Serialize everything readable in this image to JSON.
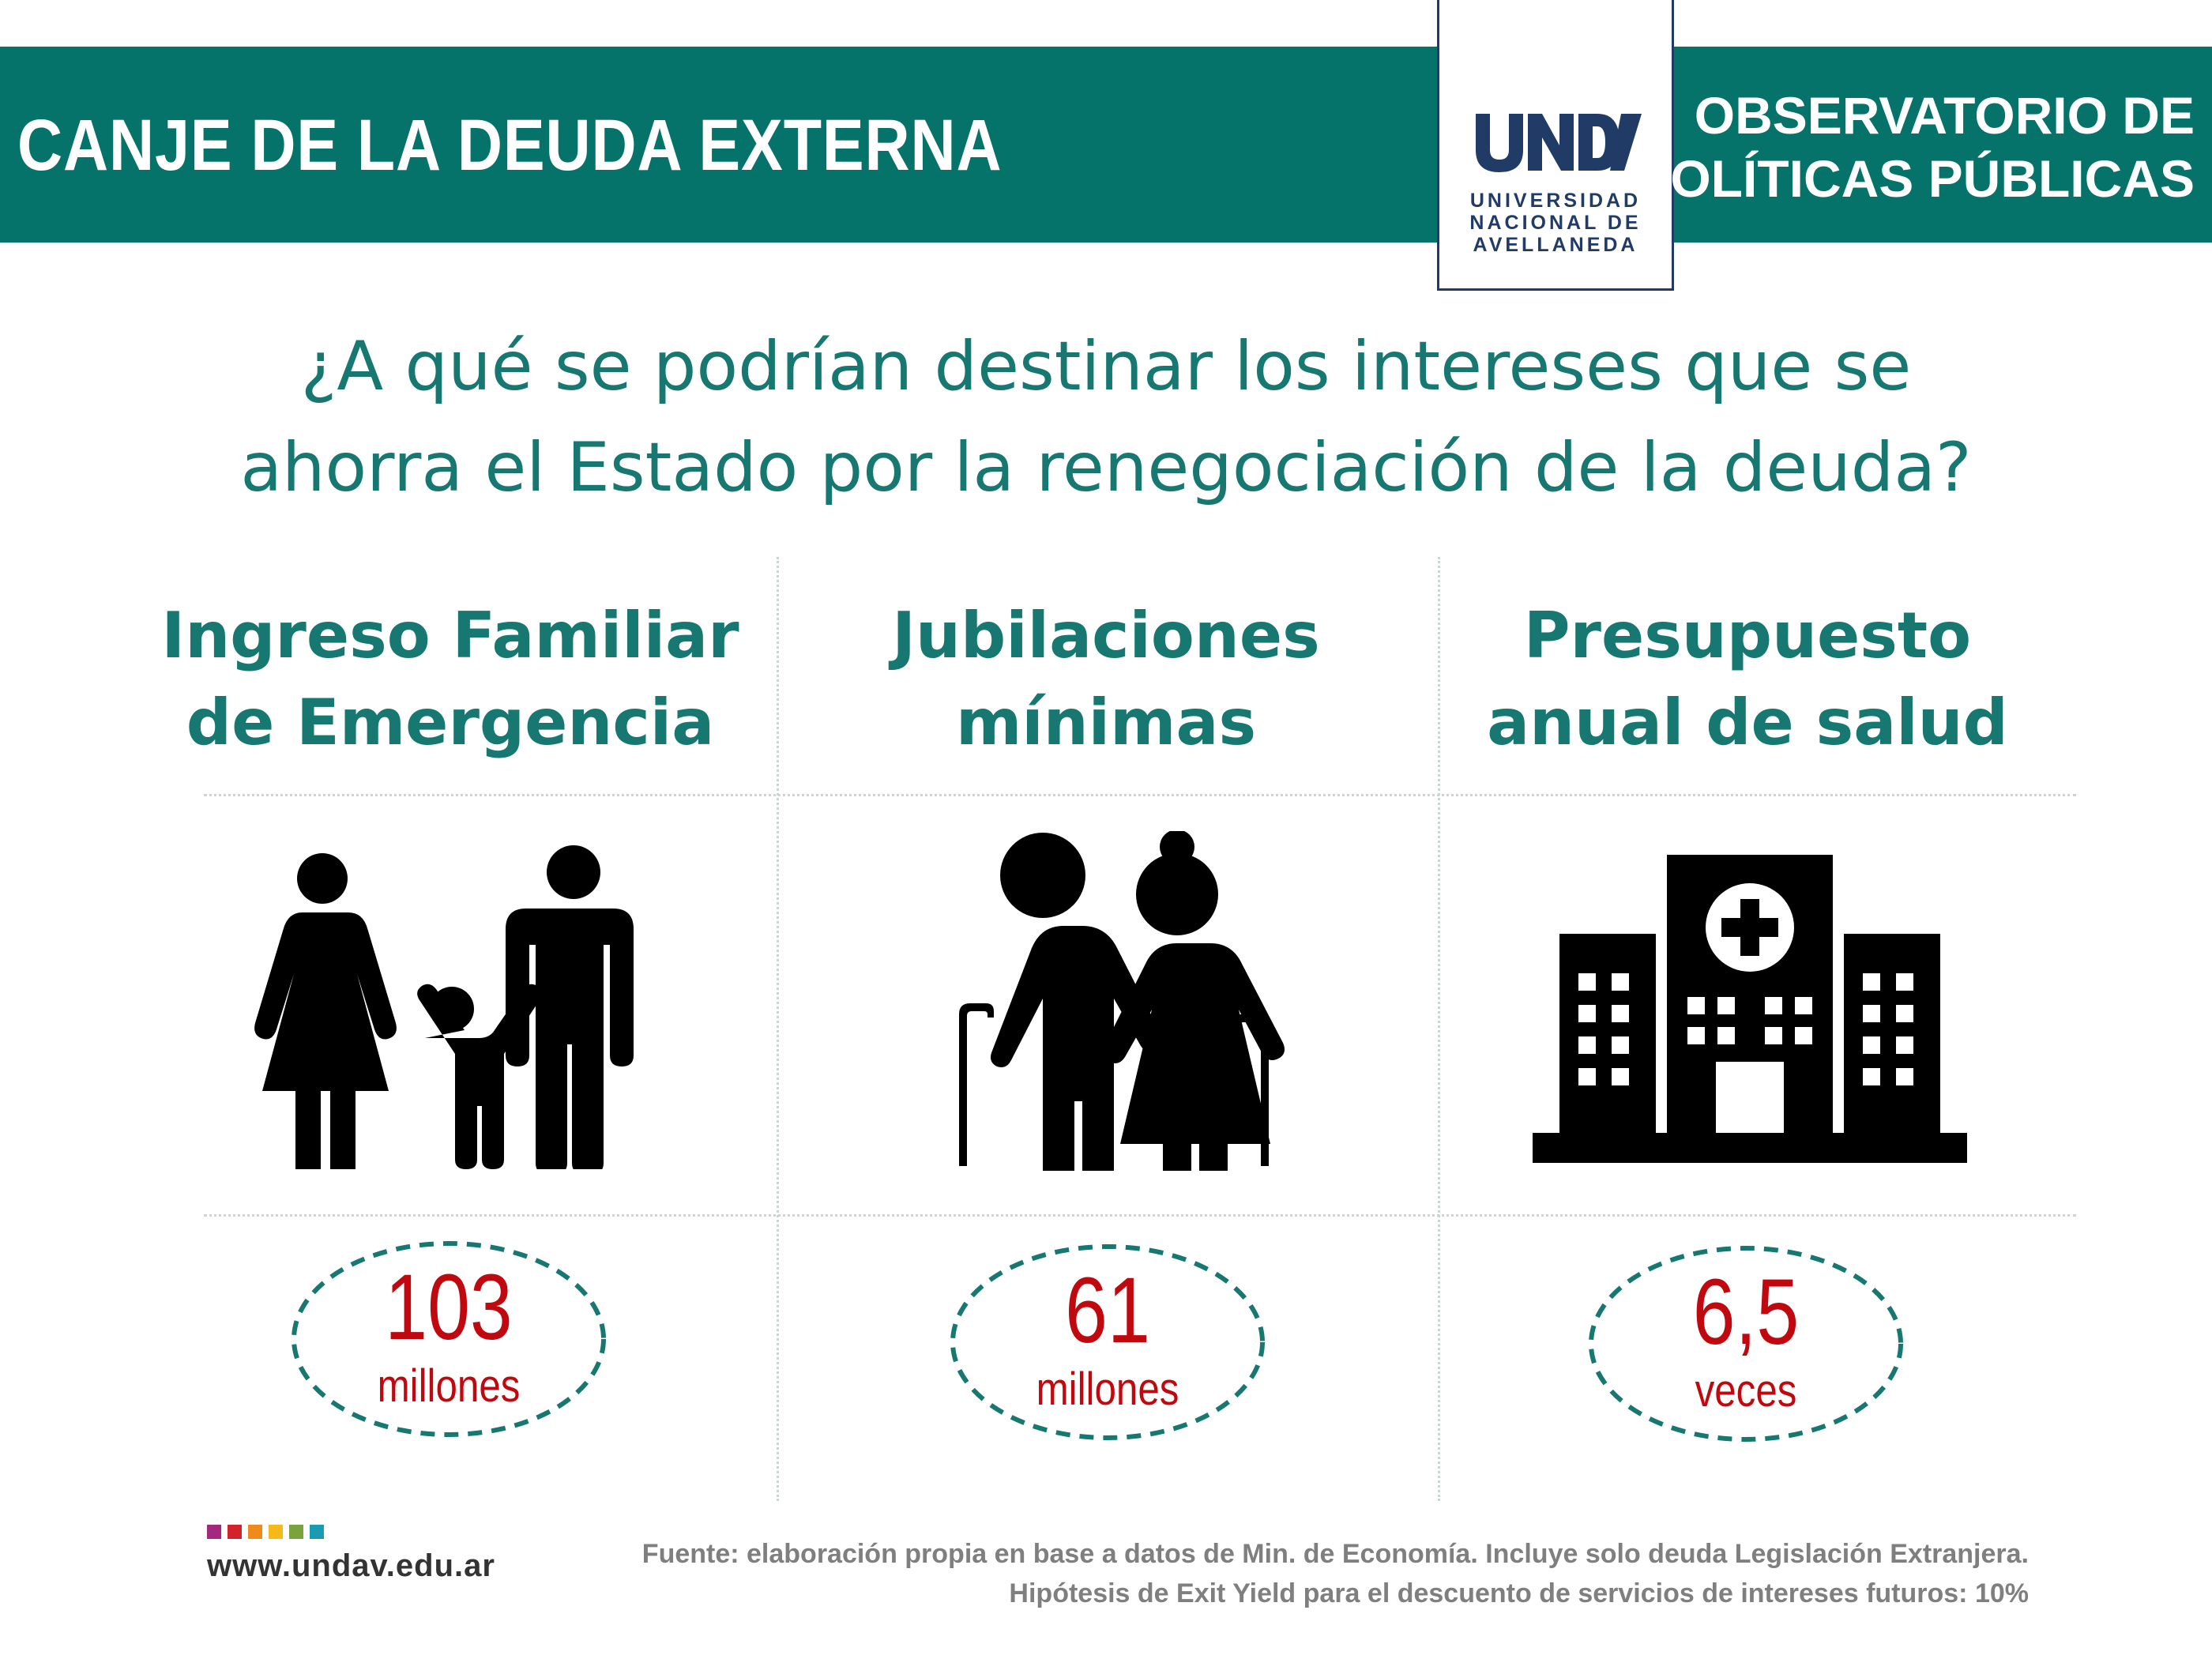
{
  "header": {
    "title": "CANJE DE LA DEUDA EXTERNA",
    "observatorio_line1": "OBSERVATORIO DE",
    "observatorio_line2": "POLÍTICAS PÚBLICAS",
    "band_color": "#06736b"
  },
  "logo": {
    "mark": "UNDAV",
    "line1": "UNIVERSIDAD",
    "line2": "NACIONAL DE",
    "line3": "AVELLANEDA",
    "color": "#1f3b66"
  },
  "question": {
    "line1": "¿A qué se podrían destinar los intereses que se",
    "line2": "ahorra el Estado por la renegociación de la deuda?"
  },
  "columns": [
    {
      "title_line1": "Ingreso Familiar",
      "title_line2": "de Emergencia",
      "icon": "family-icon",
      "value": "103",
      "unit": "millones"
    },
    {
      "title_line1": "Jubilaciones",
      "title_line2": "mínimas",
      "icon": "elderly-couple-icon",
      "value": "61",
      "unit": "millones"
    },
    {
      "title_line1": "Presupuesto",
      "title_line2": "anual de salud",
      "icon": "hospital-icon",
      "value": "6,5",
      "unit": "veces"
    }
  ],
  "footer": {
    "website": "www.undav.edu.ar",
    "source_line1": "Fuente: elaboración propia en base a datos de Min. de Economía. Incluye solo deuda Legislación Extranjera.",
    "source_line2": "Hipótesis de Exit Yield para el descuento de servicios de intereses futuros: 10%",
    "square_colors": [
      "#a4287f",
      "#d2232a",
      "#f08a1d",
      "#f5b919",
      "#7aa33d",
      "#1a9bb3"
    ]
  },
  "colors": {
    "accent_teal": "#167870",
    "value_red": "#c0080f",
    "icon_black": "#000000"
  }
}
